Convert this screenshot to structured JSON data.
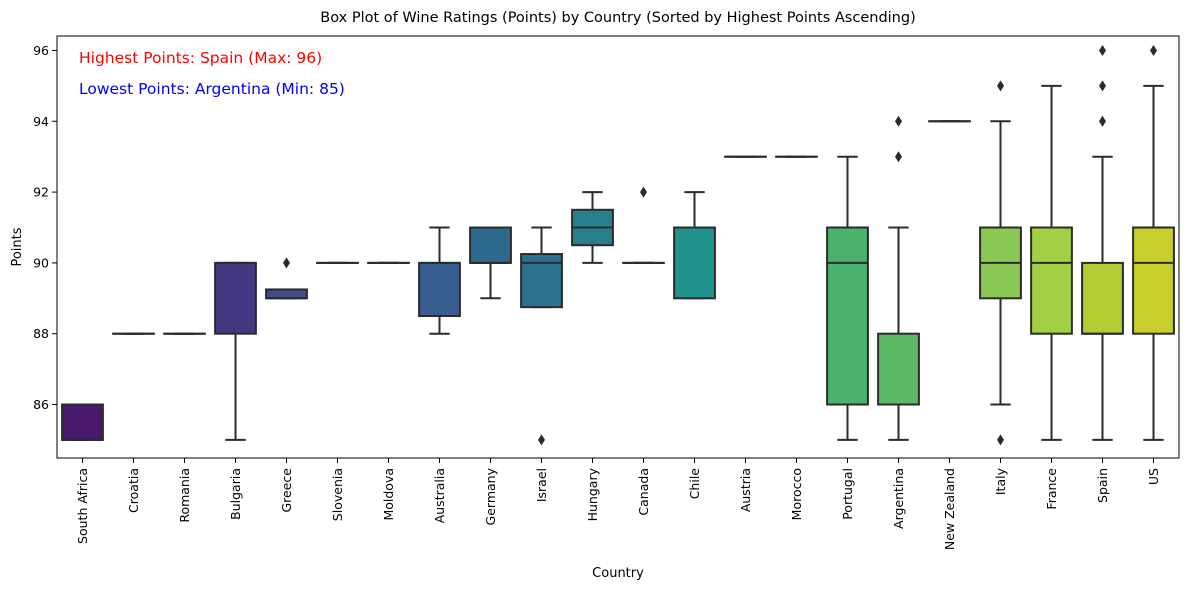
{
  "chart_data": {
    "type": "box",
    "title": "Box Plot of Wine Ratings (Points) by Country (Sorted by Highest Points Ascending)",
    "xlabel": "Country",
    "ylabel": "Points",
    "ylim": [
      84.5,
      96.6
    ],
    "yticks": [
      86,
      88,
      90,
      92,
      94,
      96
    ],
    "grid": false,
    "annotations": [
      {
        "text": "Highest Points: Spain (Max: 96)",
        "color": "#ff0000"
      },
      {
        "text": "Lowest Points: Argentina (Min: 85)",
        "color": "#0000ff"
      }
    ],
    "boxes": [
      {
        "category": "South Africa",
        "color": "#481a6c",
        "whisker_low": 85,
        "q1": 85,
        "median": 85,
        "q3": 86,
        "whisker_high": 86,
        "outliers": []
      },
      {
        "category": "Croatia",
        "color": "#472e7c",
        "whisker_low": 88,
        "q1": 88,
        "median": 88,
        "q3": 88,
        "whisker_high": 88,
        "outliers": []
      },
      {
        "category": "Romania",
        "color": "#433d84",
        "whisker_low": 88,
        "q1": 88,
        "median": 88,
        "q3": 88,
        "whisker_high": 88,
        "outliers": []
      },
      {
        "category": "Bulgaria",
        "color": "#453882",
        "whisker_low": 85,
        "q1": 88,
        "median": 90,
        "q3": 90,
        "whisker_high": 90,
        "outliers": []
      },
      {
        "category": "Greece",
        "color": "#3e4c8a",
        "whisker_low": 89,
        "q1": 89,
        "median": 89,
        "q3": 89.25,
        "whisker_high": 89.25,
        "outliers": [
          90
        ]
      },
      {
        "category": "Slovenia",
        "color": "#375a8c",
        "whisker_low": 90,
        "q1": 90,
        "median": 90,
        "q3": 90,
        "whisker_high": 90,
        "outliers": []
      },
      {
        "category": "Moldova",
        "color": "#31688e",
        "whisker_low": 90,
        "q1": 90,
        "median": 90,
        "q3": 90,
        "whisker_high": 90,
        "outliers": []
      },
      {
        "category": "Australia",
        "color": "#365d8d",
        "whisker_low": 88,
        "q1": 88.5,
        "median": 90,
        "q3": 90,
        "whisker_high": 91,
        "outliers": []
      },
      {
        "category": "Germany",
        "color": "#30698e",
        "whisker_low": 89,
        "q1": 90,
        "median": 90,
        "q3": 91,
        "whisker_high": 91,
        "outliers": []
      },
      {
        "category": "Israel",
        "color": "#2c728e",
        "whisker_low": 88.75,
        "q1": 88.75,
        "median": 90,
        "q3": 90.25,
        "whisker_high": 91,
        "outliers": [
          85
        ]
      },
      {
        "category": "Hungary",
        "color": "#27808e",
        "whisker_low": 90,
        "q1": 90.5,
        "median": 91,
        "q3": 91.5,
        "whisker_high": 92,
        "outliers": []
      },
      {
        "category": "Canada",
        "color": "#21918c",
        "whisker_low": 90,
        "q1": 90,
        "median": 90,
        "q3": 90,
        "whisker_high": 90,
        "outliers": [
          92
        ]
      },
      {
        "category": "Chile",
        "color": "#20928c",
        "whisker_low": 89,
        "q1": 89,
        "median": 91,
        "q3": 91,
        "whisker_high": 92,
        "outliers": []
      },
      {
        "category": "Austria",
        "color": "#1fa088",
        "whisker_low": 93,
        "q1": 93,
        "median": 93,
        "q3": 93,
        "whisker_high": 93,
        "outliers": []
      },
      {
        "category": "Morocco",
        "color": "#28ae80",
        "whisker_low": 93,
        "q1": 93,
        "median": 93,
        "q3": 93,
        "whisker_high": 93,
        "outliers": []
      },
      {
        "category": "Portugal",
        "color": "#4ab26d",
        "whisker_low": 85,
        "q1": 86,
        "median": 90,
        "q3": 91,
        "whisker_high": 93,
        "outliers": []
      },
      {
        "category": "Argentina",
        "color": "#5bba68",
        "whisker_low": 85,
        "q1": 86,
        "median": 86,
        "q3": 88,
        "whisker_high": 91,
        "outliers": [
          93,
          94
        ]
      },
      {
        "category": "New Zealand",
        "color": "#6ece58",
        "whisker_low": 94,
        "q1": 94,
        "median": 94,
        "q3": 94,
        "whisker_high": 94,
        "outliers": []
      },
      {
        "category": "Italy",
        "color": "#8bc954",
        "whisker_low": 86,
        "q1": 89,
        "median": 90,
        "q3": 91,
        "whisker_high": 94,
        "outliers": [
          85,
          95
        ]
      },
      {
        "category": "France",
        "color": "#a2cf43",
        "whisker_low": 85,
        "q1": 88,
        "median": 90,
        "q3": 91,
        "whisker_high": 95,
        "outliers": []
      },
      {
        "category": "Spain",
        "color": "#b3cd33",
        "whisker_low": 85,
        "q1": 88,
        "median": 88,
        "q3": 90,
        "whisker_high": 93,
        "outliers": [
          94,
          95,
          96
        ]
      },
      {
        "category": "US",
        "color": "#c8ce2c",
        "whisker_low": 85,
        "q1": 88,
        "median": 90,
        "q3": 91,
        "whisker_high": 95,
        "outliers": [
          96
        ]
      }
    ]
  }
}
